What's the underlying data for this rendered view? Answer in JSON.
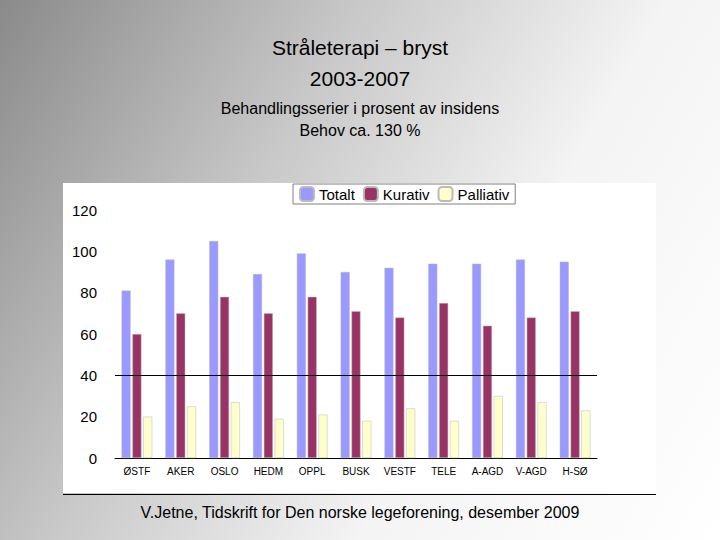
{
  "chart_data": {
    "type": "bar",
    "title": "Stråleterapi – bryst\n2003-2007",
    "subtitle": "Behandlingsserier i prosent av insidens\nBehov ca. 130 %",
    "source": "V.Jetne, Tidskrift for Den norske legeforening, desember 2009",
    "categories": [
      "ØSTF",
      "AKER",
      "OSLO",
      "HEDM",
      "OPPL",
      "BUSK",
      "VESTF",
      "TELE",
      "A-AGD",
      "V-AGD",
      "H-SØ"
    ],
    "series": [
      {
        "name": "Totalt",
        "color": "#9999ff",
        "values": [
          81,
          96,
          105,
          89,
          99,
          90,
          92,
          94,
          94,
          96,
          95
        ]
      },
      {
        "name": "Kurativ",
        "color": "#993366",
        "values": [
          60,
          70,
          78,
          70,
          78,
          71,
          68,
          75,
          64,
          68,
          71
        ]
      },
      {
        "name": "Palliativ",
        "color": "#ffffcc",
        "values": [
          20,
          25,
          27,
          19,
          21,
          18,
          24,
          18,
          30,
          27,
          23
        ]
      }
    ],
    "reference_line": 40,
    "ylim": [
      0,
      120
    ],
    "yticks": [
      0,
      20,
      40,
      60,
      80,
      100,
      120
    ],
    "grid": false,
    "legend": "top"
  }
}
